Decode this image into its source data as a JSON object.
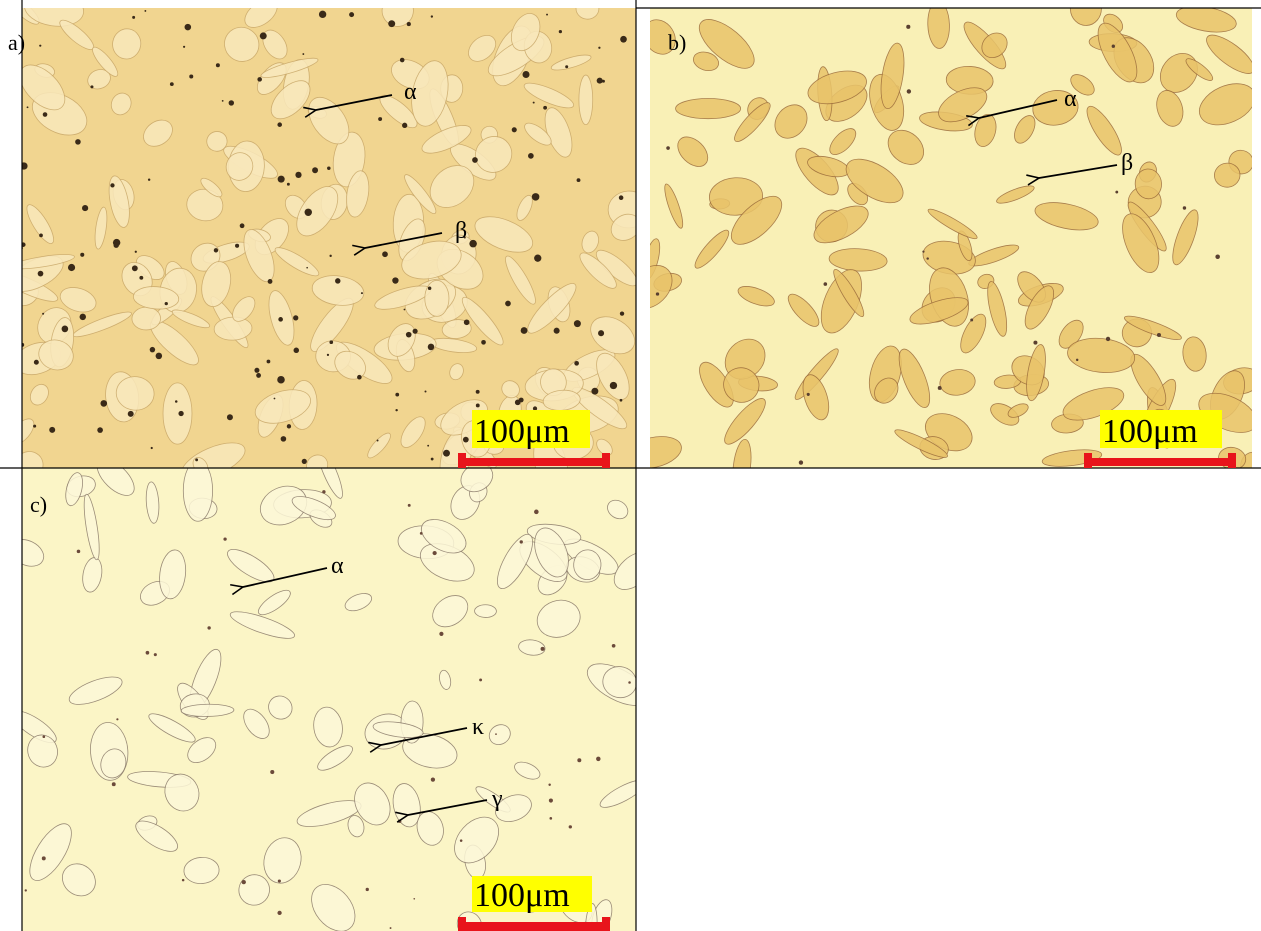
{
  "panels": [
    {
      "label": "a)",
      "phases": [
        {
          "label": "α"
        },
        {
          "label": "β"
        }
      ],
      "scale_bar": "100μm"
    },
    {
      "label": "b)",
      "phases": [
        {
          "label": "α"
        },
        {
          "label": "β"
        }
      ],
      "scale_bar": "100μm"
    },
    {
      "label": "c)",
      "phases": [
        {
          "label": "α"
        },
        {
          "label": "κ"
        },
        {
          "label": "γ"
        }
      ],
      "scale_bar": "100μm"
    }
  ]
}
